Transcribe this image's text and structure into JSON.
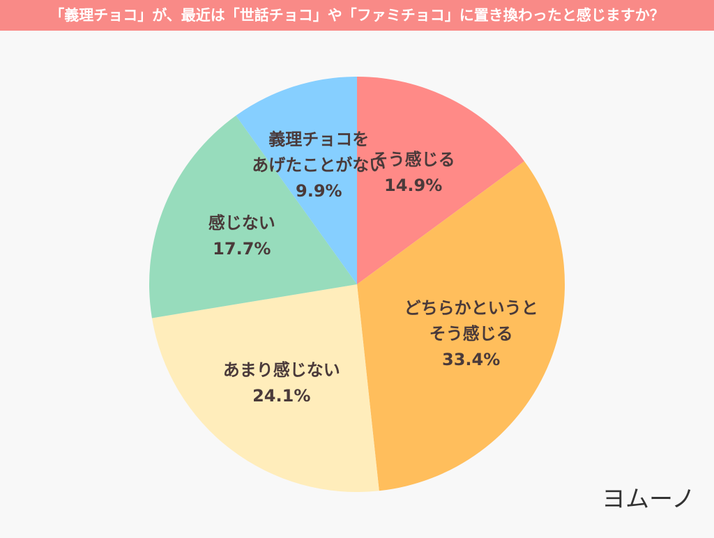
{
  "chart_data": {
    "type": "pie",
    "title": "「義理チョコ」が、最近は「世話チョコ」や「ファミチョコ」に置き換わったと感じますか？",
    "categories": [
      [
        "そう感じる"
      ],
      [
        "どちらかというと",
        "そう感じる"
      ],
      [
        "あまり感じない"
      ],
      [
        "感じない"
      ],
      [
        "義理チョコを",
        "あげたことがない"
      ]
    ],
    "values": [
      14.9,
      33.4,
      24.1,
      17.7,
      9.9
    ],
    "value_labels": [
      "14.9%",
      "33.4%",
      "24.1%",
      "17.7%",
      "9.9%"
    ],
    "colors": [
      "#ff8a87",
      "#ffbe5c",
      "#ffedbb",
      "#97dcbc",
      "#86cfff"
    ]
  },
  "logo": "ヨムーノ"
}
